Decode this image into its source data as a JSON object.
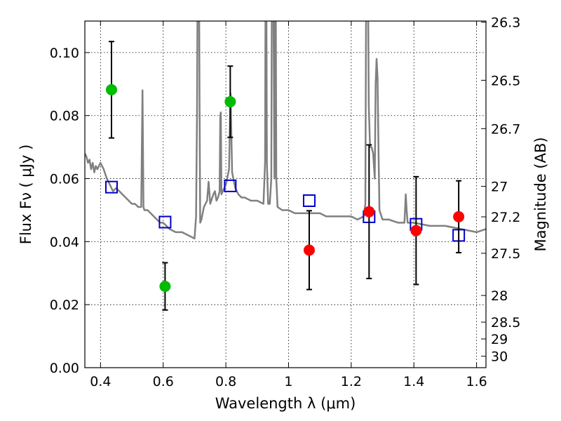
{
  "chart_data": {
    "type": "scatter",
    "title": "",
    "xlabel": "Wavelength  λ (μm)",
    "ylabel": "Flux  Fν  ( μJy )",
    "y2label": "Magnitude (AB)",
    "xlim": [
      0.35,
      1.63
    ],
    "ylim": [
      0.0,
      0.11
    ],
    "xticks": [
      0.4,
      0.6,
      0.8,
      1.0,
      1.2,
      1.4,
      1.6
    ],
    "xtick_labels": [
      "0.4",
      "0.6",
      "0.8",
      "1",
      "1.2",
      "1.4",
      "1.6"
    ],
    "yticks": [
      0.0,
      0.02,
      0.04,
      0.06,
      0.08,
      0.1
    ],
    "ytick_labels": [
      "0.00",
      "0.02",
      "0.04",
      "0.06",
      "0.08",
      "0.10"
    ],
    "y2ticks": [
      {
        "label": "26.3",
        "value": 26.3
      },
      {
        "label": "26.5",
        "value": 26.5
      },
      {
        "label": "26.7",
        "value": 26.7
      },
      {
        "label": "27",
        "value": 27.0
      },
      {
        "label": "27.2",
        "value": 27.2
      },
      {
        "label": "27.5",
        "value": 27.5
      },
      {
        "label": "28",
        "value": 28.0
      },
      {
        "label": "28.5",
        "value": 28.5
      },
      {
        "label": "29",
        "value": 29.0
      },
      {
        "label": "30",
        "value": 30.0
      }
    ],
    "grid": true,
    "colors": {
      "model": "#808080",
      "model_points": "#0000cc",
      "optical_obs": "#00bb00",
      "nir_obs": "#ff0000",
      "errorbar": "#000000"
    },
    "series": [
      {
        "name": "observed-optical",
        "marker": "circle",
        "color": "#00bb00",
        "x": [
          0.435,
          0.606,
          0.814
        ],
        "y": [
          0.0882,
          0.0258,
          0.0844
        ],
        "yerr": [
          0.0153,
          0.0075,
          0.0113
        ]
      },
      {
        "name": "observed-nir",
        "marker": "circle",
        "color": "#ff0000",
        "x": [
          1.066,
          1.257,
          1.407,
          1.543
        ],
        "y": [
          0.0373,
          0.0495,
          0.0435,
          0.0479
        ],
        "yerr": [
          0.0125,
          0.0212,
          0.0171,
          0.0114
        ]
      },
      {
        "name": "model-photometry",
        "marker": "open-square",
        "color": "#0000cc",
        "x": [
          0.435,
          0.606,
          0.814,
          1.066,
          1.257,
          1.407,
          1.543
        ],
        "y": [
          0.0573,
          0.0462,
          0.0577,
          0.053,
          0.0479,
          0.0455,
          0.042
        ]
      },
      {
        "name": "model-spectrum",
        "marker": "line",
        "color": "#808080",
        "x": [
          0.35,
          0.355,
          0.36,
          0.365,
          0.37,
          0.375,
          0.38,
          0.385,
          0.39,
          0.395,
          0.4,
          0.41,
          0.42,
          0.43,
          0.44,
          0.45,
          0.46,
          0.47,
          0.48,
          0.49,
          0.5,
          0.51,
          0.52,
          0.53,
          0.534,
          0.537,
          0.54,
          0.545,
          0.55,
          0.56,
          0.57,
          0.58,
          0.59,
          0.6,
          0.62,
          0.64,
          0.66,
          0.68,
          0.7,
          0.705,
          0.708,
          0.71,
          0.712,
          0.714,
          0.716,
          0.718,
          0.722,
          0.73,
          0.74,
          0.745,
          0.75,
          0.76,
          0.765,
          0.77,
          0.775,
          0.78,
          0.782,
          0.784,
          0.786,
          0.79,
          0.8,
          0.81,
          0.815,
          0.82,
          0.83,
          0.84,
          0.85,
          0.86,
          0.88,
          0.9,
          0.92,
          0.925,
          0.927,
          0.929,
          0.931,
          0.935,
          0.94,
          0.945,
          0.947,
          0.949,
          0.951,
          0.955,
          0.957,
          0.959,
          0.961,
          0.965,
          0.98,
          1.0,
          1.02,
          1.04,
          1.06,
          1.08,
          1.1,
          1.12,
          1.14,
          1.16,
          1.18,
          1.2,
          1.22,
          1.24,
          1.245,
          1.248,
          1.25,
          1.253,
          1.256,
          1.26,
          1.265,
          1.27,
          1.275,
          1.278,
          1.281,
          1.284,
          1.287,
          1.29,
          1.3,
          1.32,
          1.35,
          1.37,
          1.374,
          1.377,
          1.38,
          1.385,
          1.4,
          1.45,
          1.5,
          1.55,
          1.6,
          1.63
        ],
        "y": [
          0.068,
          0.067,
          0.065,
          0.066,
          0.063,
          0.065,
          0.062,
          0.064,
          0.063,
          0.064,
          0.065,
          0.063,
          0.06,
          0.058,
          0.056,
          0.057,
          0.056,
          0.055,
          0.054,
          0.053,
          0.052,
          0.052,
          0.051,
          0.051,
          0.088,
          0.051,
          0.05,
          0.05,
          0.05,
          0.049,
          0.048,
          0.047,
          0.046,
          0.046,
          0.044,
          0.043,
          0.043,
          0.042,
          0.041,
          0.048,
          0.082,
          0.13,
          0.13,
          0.13,
          0.082,
          0.046,
          0.047,
          0.051,
          0.053,
          0.059,
          0.052,
          0.055,
          0.056,
          0.053,
          0.054,
          0.056,
          0.08,
          0.081,
          0.055,
          0.056,
          0.058,
          0.063,
          0.087,
          0.062,
          0.057,
          0.055,
          0.054,
          0.054,
          0.053,
          0.053,
          0.052,
          0.065,
          0.13,
          0.13,
          0.065,
          0.052,
          0.052,
          0.06,
          0.13,
          0.13,
          0.13,
          0.06,
          0.13,
          0.13,
          0.06,
          0.051,
          0.05,
          0.05,
          0.049,
          0.049,
          0.049,
          0.049,
          0.049,
          0.048,
          0.048,
          0.048,
          0.048,
          0.048,
          0.047,
          0.048,
          0.052,
          0.13,
          0.13,
          0.13,
          0.083,
          0.07,
          0.07,
          0.068,
          0.06,
          0.09,
          0.098,
          0.092,
          0.07,
          0.05,
          0.047,
          0.047,
          0.046,
          0.046,
          0.055,
          0.05,
          0.046,
          0.046,
          0.046,
          0.045,
          0.045,
          0.044,
          0.043,
          0.044
        ]
      }
    ]
  }
}
